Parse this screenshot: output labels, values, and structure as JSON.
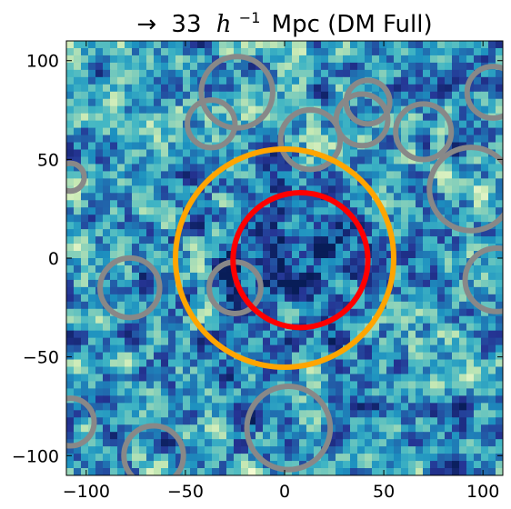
{
  "chart_data": {
    "type": "heatmap",
    "title": "→ 33 h⁻¹ Mpc (DM Full)",
    "title_parts": {
      "arrow": "→",
      "value": "33",
      "h": "h",
      "exp": "−1",
      "unit": "Mpc (DM Full)"
    },
    "xlim": [
      -110,
      110
    ],
    "ylim": [
      -110,
      110
    ],
    "xticks": [
      -100,
      -50,
      0,
      50,
      100
    ],
    "yticks": [
      -100,
      -50,
      0,
      50,
      100
    ],
    "xtick_labels": [
      "−100",
      "−50",
      "0",
      "50",
      "100"
    ],
    "ytick_labels": [
      "−100",
      "−50",
      "0",
      "50",
      "100"
    ],
    "colormap": "YlGnBu",
    "highlight_circles": [
      {
        "name": "outer",
        "x": 0,
        "y": 0,
        "r": 55,
        "color": "#ffa500"
      },
      {
        "name": "inner",
        "x": 8,
        "y": -1,
        "r": 34,
        "color": "#ff0000"
      }
    ],
    "void_circles": [
      {
        "x": -24,
        "y": 84,
        "r": 18
      },
      {
        "x": -37,
        "y": 68,
        "r": 12
      },
      {
        "x": 13,
        "y": 60,
        "r": 15
      },
      {
        "x": 42,
        "y": 79,
        "r": 11
      },
      {
        "x": 39,
        "y": 70,
        "r": 13
      },
      {
        "x": 70,
        "y": 64,
        "r": 14
      },
      {
        "x": 105,
        "y": 84,
        "r": 13
      },
      {
        "x": -108,
        "y": 41,
        "r": 7
      },
      {
        "x": 94,
        "y": 35,
        "r": 21
      },
      {
        "x": -78,
        "y": -15,
        "r": 15
      },
      {
        "x": -25,
        "y": -15,
        "r": 13
      },
      {
        "x": 107,
        "y": -11,
        "r": 16
      },
      {
        "x": -108,
        "y": -83,
        "r": 12
      },
      {
        "x": 2,
        "y": -86,
        "r": 21
      },
      {
        "x": -66,
        "y": -100,
        "r": 15
      }
    ],
    "void_circle_color": "#888888"
  }
}
